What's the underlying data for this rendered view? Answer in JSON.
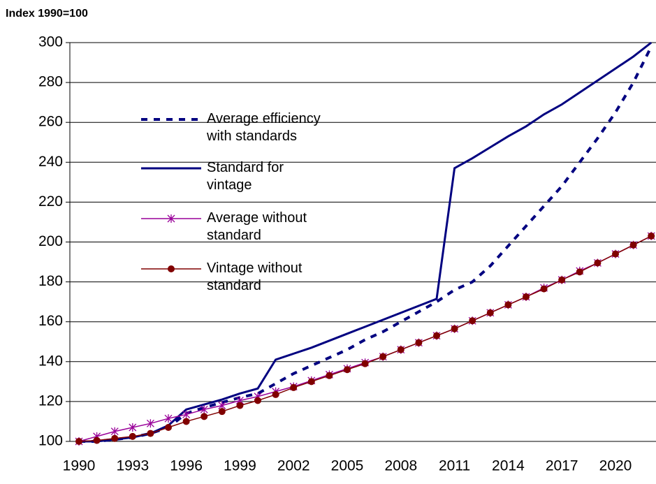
{
  "chart_data": {
    "type": "line",
    "ylabel": "Index 1990=100",
    "categories": [
      "1990",
      null,
      null,
      "1993",
      null,
      null,
      "1996",
      null,
      null,
      "1999",
      null,
      null,
      "2002",
      null,
      null,
      "2005",
      null,
      null,
      "2008",
      null,
      null,
      "2011",
      null,
      null,
      "2014",
      null,
      null,
      "2017",
      null,
      null,
      "2020",
      null,
      null
    ],
    "series": [
      {
        "name": "Average efficiency with standards",
        "color": "#000080",
        "style": "dashed",
        "marker": "none",
        "values": [
          100,
          100,
          101,
          102,
          104,
          107,
          114,
          117,
          119.5,
          122,
          124,
          129,
          134,
          138,
          142,
          146,
          151,
          155,
          160,
          165,
          170,
          176,
          180,
          188,
          198,
          208,
          218,
          228,
          240,
          252,
          265,
          280,
          298
        ]
      },
      {
        "name": "Standard for vintage",
        "color": "#000080",
        "style": "solid",
        "marker": "none",
        "values": [
          100,
          100,
          101,
          102,
          104,
          108,
          116,
          118.5,
          121,
          124,
          126.5,
          141,
          144,
          147,
          150.5,
          154,
          157.5,
          161,
          164.5,
          168,
          171.5,
          237,
          242,
          247.5,
          253,
          258,
          264,
          269,
          275,
          281,
          287,
          293,
          300
        ]
      },
      {
        "name": "Average without standard",
        "color": "#990099",
        "style": "solid",
        "marker": "asterisk",
        "values": [
          100,
          102.5,
          105,
          107,
          109,
          111.5,
          113.5,
          116,
          118,
          120.5,
          122.5,
          125,
          127.5,
          130.5,
          133.5,
          136.5,
          139.5,
          142.5,
          146,
          149.5,
          153,
          156.5,
          160.5,
          164.5,
          168.5,
          172.5,
          177,
          181,
          185.5,
          189.5,
          194,
          198.5,
          203
        ]
      },
      {
        "name": "Vintage without standard",
        "color": "#800000",
        "style": "solid",
        "marker": "circle",
        "values": [
          100,
          100.5,
          101.5,
          102.5,
          104,
          107,
          110,
          112.5,
          115,
          118,
          120.5,
          123.5,
          127,
          130,
          133,
          136,
          139,
          142.5,
          146,
          149.5,
          153,
          156.5,
          160.5,
          164.5,
          168.5,
          172.5,
          176.5,
          181,
          185,
          189.5,
          194,
          198.5,
          203
        ]
      }
    ],
    "ylim": [
      100,
      300
    ],
    "yticks": [
      100,
      120,
      140,
      160,
      180,
      200,
      220,
      240,
      260,
      280,
      300
    ],
    "grid": true
  }
}
